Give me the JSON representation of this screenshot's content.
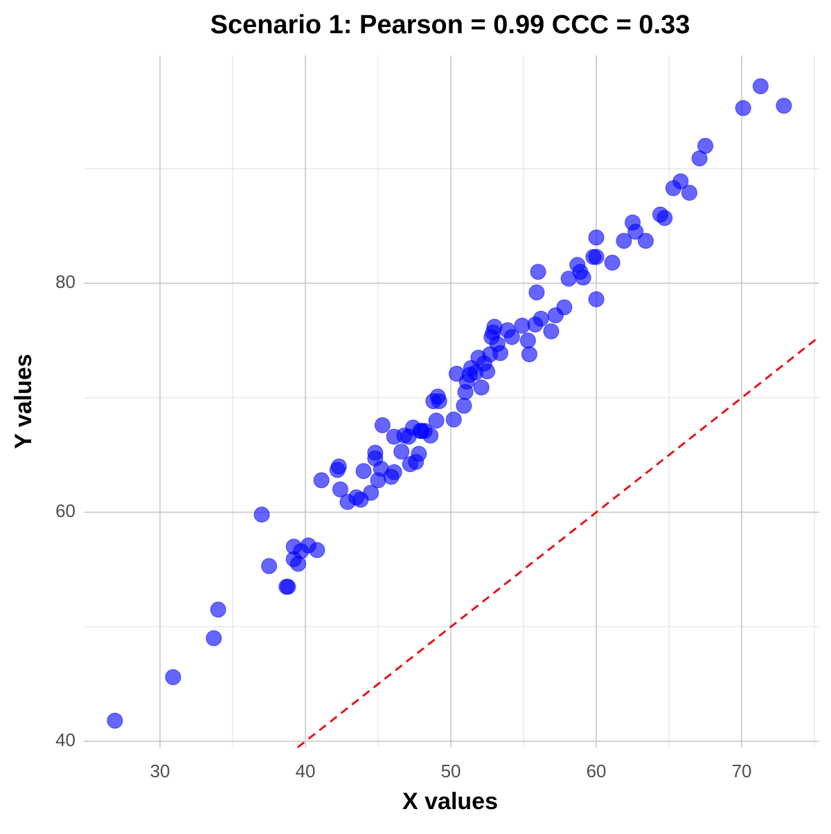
{
  "chart_data": {
    "type": "scatter",
    "title": "Scenario 1: Pearson = 0.99 CCC = 0.33",
    "x_label": "X values",
    "y_label": "Y values",
    "xlim": [
      24.76,
      75.33
    ],
    "ylim": [
      39.46,
      99.9
    ],
    "xticks": [
      30,
      40,
      50,
      60,
      70
    ],
    "yticks": [
      40,
      60,
      80
    ],
    "x_minor_grid": [
      35,
      45,
      55,
      65,
      75
    ],
    "y_minor_grid": [
      50,
      70,
      90
    ],
    "grid": true,
    "reference_line": {
      "slope": 1,
      "intercept": 0,
      "color": "#e8141b"
    },
    "series": [
      {
        "color": "#0000ff",
        "x": [
          26.9,
          30.9,
          33.7,
          34.0,
          37.0,
          37.5,
          38.7,
          38.8,
          39.2,
          39.2,
          39.5,
          39.7,
          40.2,
          40.8,
          41.1,
          42.2,
          42.3,
          42.4,
          42.9,
          43.5,
          43.8,
          44.0,
          44.5,
          44.8,
          44.8,
          45.0,
          45.2,
          45.3,
          45.9,
          46.1,
          46.1,
          46.6,
          46.8,
          47.1,
          47.2,
          47.4,
          47.6,
          47.8,
          47.9,
          48.0,
          48.2,
          48.6,
          48.8,
          49.1,
          49.2,
          49.0,
          50.2,
          50.4,
          50.9,
          51.0,
          51.1,
          51.3,
          51.4,
          51.7,
          52.1,
          51.9,
          52.3,
          52.5,
          52.7,
          52.8,
          52.9,
          53.0,
          53.2,
          53.4,
          53.9,
          54.2,
          54.9,
          55.3,
          55.4,
          55.8,
          55.9,
          56.0,
          56.2,
          56.9,
          57.2,
          57.8,
          58.1,
          58.7,
          58.9,
          59.1,
          59.8,
          60.0,
          60.0,
          60.0,
          61.1,
          61.9,
          62.5,
          62.7,
          63.4,
          64.4,
          64.7,
          65.3,
          65.8,
          66.4,
          67.1,
          67.5,
          70.1,
          71.3,
          72.9
        ],
        "values": [
          41.8,
          45.6,
          49.0,
          51.5,
          59.8,
          55.3,
          53.5,
          53.5,
          57.0,
          55.9,
          55.5,
          56.6,
          57.1,
          56.7,
          62.8,
          63.7,
          64.0,
          62.0,
          60.9,
          61.3,
          61.1,
          63.6,
          61.7,
          64.7,
          65.2,
          62.8,
          63.8,
          67.6,
          63.1,
          63.5,
          66.6,
          65.3,
          66.7,
          66.6,
          64.2,
          67.4,
          64.4,
          65.1,
          67.1,
          67.1,
          67.1,
          66.7,
          69.7,
          70.1,
          69.7,
          68.0,
          68.1,
          72.1,
          69.3,
          70.5,
          71.4,
          72.0,
          72.6,
          72.2,
          70.9,
          73.5,
          73.0,
          72.3,
          73.8,
          75.3,
          75.7,
          76.2,
          74.7,
          73.9,
          75.9,
          75.3,
          76.3,
          75.0,
          73.8,
          76.4,
          79.2,
          81.0,
          76.9,
          75.8,
          77.2,
          77.9,
          80.4,
          81.6,
          81.0,
          80.5,
          82.3,
          84.0,
          78.6,
          82.3,
          81.8,
          83.7,
          85.3,
          84.5,
          83.7,
          86.0,
          85.7,
          88.3,
          88.9,
          87.9,
          90.9,
          92.0,
          95.3,
          97.2,
          95.5
        ]
      }
    ]
  }
}
